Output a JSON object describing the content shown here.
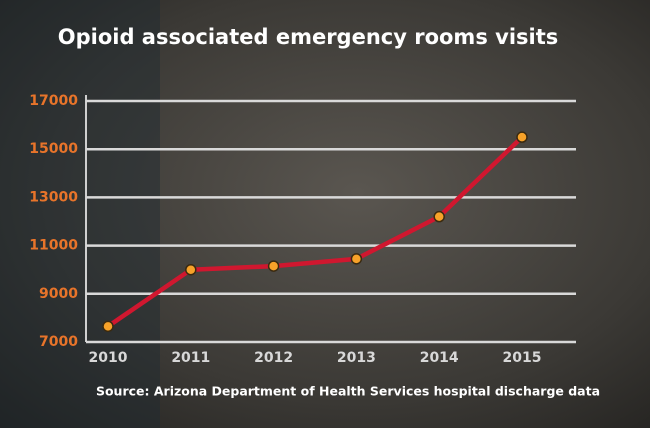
{
  "chart_data": {
    "type": "line",
    "title": "Opioid associated emergency rooms visits",
    "source": "Source: Arizona Department of Health Services hospital discharge data",
    "x": [
      "2010",
      "2011",
      "2012",
      "2013",
      "2014",
      "2015"
    ],
    "series": [
      {
        "name": "Opioid associated emergency room visits",
        "color": "#d0172f",
        "marker_color": "#f7a229",
        "values": [
          7650,
          10000,
          10150,
          10450,
          12200,
          15500
        ]
      }
    ],
    "ylim": [
      7000,
      17000
    ],
    "yticks": [
      7000,
      9000,
      11000,
      13000,
      15000,
      17000
    ],
    "grid": true,
    "tick_label_color": "#e8742a"
  }
}
